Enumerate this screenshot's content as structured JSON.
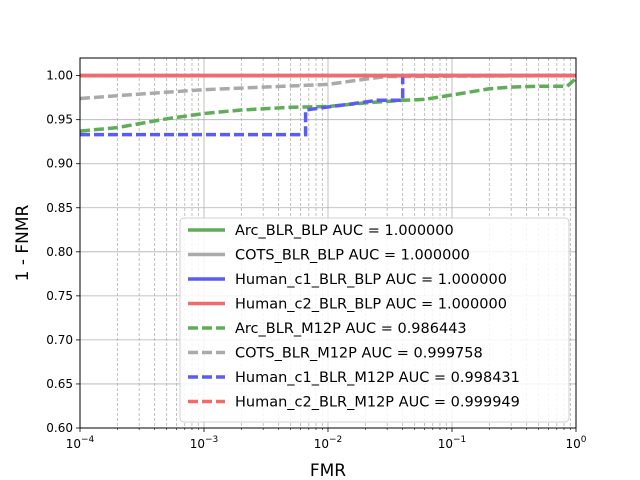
{
  "chart_data": {
    "type": "line",
    "xlabel": "FMR",
    "ylabel": "1 - FNMR",
    "x_scale": "log",
    "xlim": [
      0.0001,
      1
    ],
    "ylim": [
      0.6,
      1.02
    ],
    "y_ticks": [
      "0.60",
      "0.65",
      "0.70",
      "0.75",
      "0.80",
      "0.85",
      "0.90",
      "0.95",
      "1.00"
    ],
    "x_ticks": [
      {
        "base": "10",
        "exp": "−4"
      },
      {
        "base": "10",
        "exp": "−3"
      },
      {
        "base": "10",
        "exp": "−2"
      },
      {
        "base": "10",
        "exp": "−1"
      },
      {
        "base": "10",
        "exp": "0"
      }
    ],
    "grid": {
      "y_major": true,
      "x_major": true,
      "x_minor_dashed": true
    },
    "legend_position": "lower-right",
    "series": [
      {
        "name": "Arc_BLR_BLP AUC = 1.000000",
        "color": "#5fad56",
        "style": "solid",
        "points": [
          [
            0.0001,
            1.0
          ],
          [
            1,
            1.0
          ]
        ]
      },
      {
        "name": "COTS_BLR_BLP AUC = 1.000000",
        "color": "#aaaaaa",
        "style": "solid",
        "points": [
          [
            0.0001,
            1.0
          ],
          [
            1,
            1.0
          ]
        ]
      },
      {
        "name": "Human_c1_BLR_BLP AUC = 1.000000",
        "color": "#5b5bf5",
        "style": "solid",
        "points": [
          [
            0.0001,
            1.0
          ],
          [
            1,
            1.0
          ]
        ]
      },
      {
        "name": "Human_c2_BLR_BLP AUC = 1.000000",
        "color": "#f26b6b",
        "style": "solid",
        "points": [
          [
            0.0001,
            1.0
          ],
          [
            1,
            1.0
          ]
        ]
      },
      {
        "name": "Arc_BLR_M12P AUC = 0.986443",
        "color": "#5fad56",
        "style": "dashed",
        "points": [
          [
            0.0001,
            0.937
          ],
          [
            0.0002,
            0.941
          ],
          [
            0.0005,
            0.951
          ],
          [
            0.001,
            0.957
          ],
          [
            0.002,
            0.961
          ],
          [
            0.005,
            0.964
          ],
          [
            0.01,
            0.965
          ],
          [
            0.02,
            0.969
          ],
          [
            0.04,
            0.972
          ],
          [
            0.06,
            0.973
          ],
          [
            0.1,
            0.978
          ],
          [
            0.2,
            0.985
          ],
          [
            0.3,
            0.987
          ],
          [
            0.5,
            0.988
          ],
          [
            0.85,
            0.988
          ],
          [
            1,
            0.997
          ]
        ]
      },
      {
        "name": "COTS_BLR_M12P AUC = 0.999758",
        "color": "#aaaaaa",
        "style": "dashed",
        "points": [
          [
            0.0001,
            0.974
          ],
          [
            0.0003,
            0.979
          ],
          [
            0.001,
            0.984
          ],
          [
            0.003,
            0.987
          ],
          [
            0.01,
            0.99
          ],
          [
            0.02,
            0.996
          ],
          [
            0.03,
            0.999
          ],
          [
            1,
            1.0
          ]
        ]
      },
      {
        "name": "Human_c1_BLR_M12P AUC = 0.998431",
        "color": "#5b5bf5",
        "style": "dashed",
        "points": [
          [
            0.0001,
            0.933
          ],
          [
            0.0066,
            0.933
          ],
          [
            0.0066,
            0.961
          ],
          [
            0.02,
            0.97
          ],
          [
            0.025,
            0.972
          ],
          [
            0.04,
            0.972
          ],
          [
            0.04,
            1.0
          ],
          [
            1,
            1.0
          ]
        ]
      },
      {
        "name": "Human_c2_BLR_M12P AUC = 0.999949",
        "color": "#f26b6b",
        "style": "dashed",
        "points": [
          [
            0.0001,
            1.0
          ],
          [
            1,
            1.0
          ]
        ]
      }
    ]
  }
}
